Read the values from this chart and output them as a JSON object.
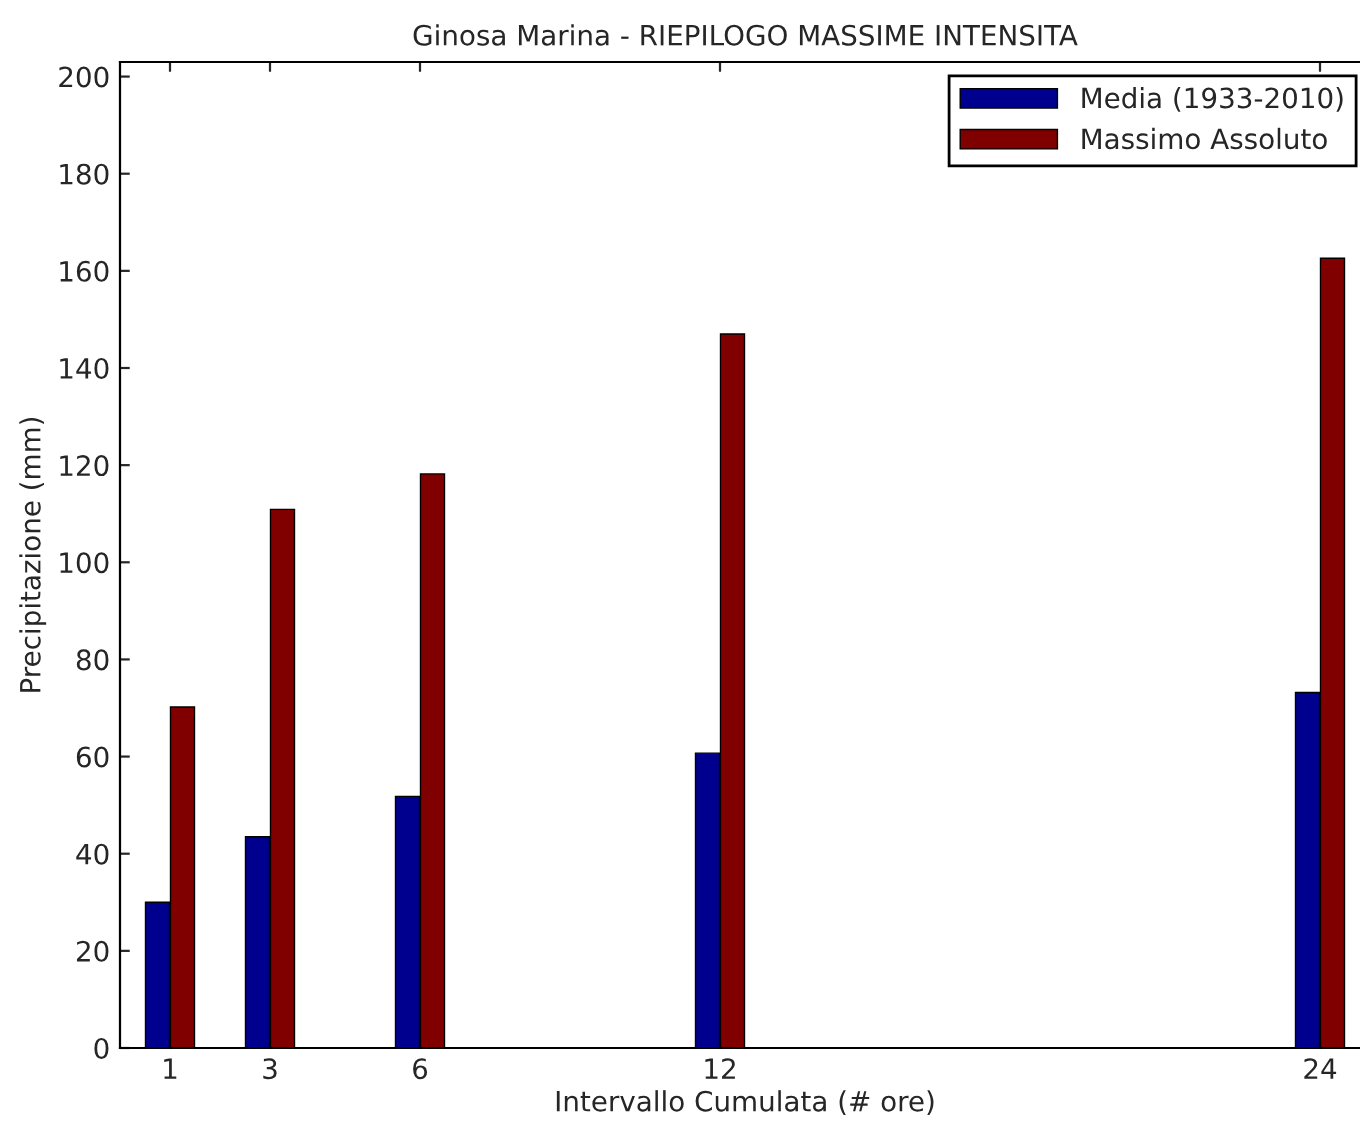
{
  "chart_data": {
    "type": "bar",
    "title": "Ginosa Marina - RIEPILOGO MASSIME INTENSITA",
    "xlabel": "Intervallo Cumulata (# ore)",
    "ylabel": "Precipitazione (mm)",
    "x": [
      1,
      3,
      6,
      12,
      24
    ],
    "series": [
      {
        "name": "Media (1933-2010)",
        "color": "#00008f",
        "values": [
          30,
          43.5,
          51.8,
          60.7,
          73.2
        ]
      },
      {
        "name": "Massimo Assoluto",
        "color": "#800000",
        "values": [
          70.2,
          110.9,
          118.2,
          147,
          162.6
        ]
      }
    ],
    "xlim": [
      0,
      25
    ],
    "xticks": [
      1,
      3,
      6,
      12,
      24
    ],
    "ylim": [
      0,
      203
    ],
    "yticks": [
      0,
      20,
      40,
      60,
      80,
      100,
      120,
      140,
      160,
      180,
      200
    ],
    "legend": "top right",
    "grid": false
  }
}
